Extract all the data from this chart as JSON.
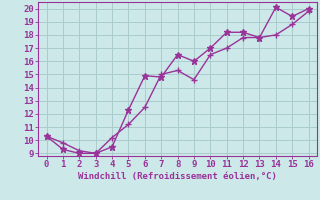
{
  "xlabel": "Windchill (Refroidissement éolien,°C)",
  "background_color": "#cce8e8",
  "grid_color": "#aacccc",
  "line_color": "#993399",
  "xlim": [
    -0.5,
    16.5
  ],
  "ylim": [
    8.8,
    20.5
  ],
  "xticks": [
    0,
    1,
    2,
    3,
    4,
    5,
    6,
    7,
    8,
    9,
    10,
    11,
    12,
    13,
    14,
    15,
    16
  ],
  "yticks": [
    9,
    10,
    11,
    12,
    13,
    14,
    15,
    16,
    17,
    18,
    19,
    20
  ],
  "line1_x": [
    0,
    1,
    2,
    3,
    4,
    5,
    6,
    7,
    8,
    9,
    10,
    11,
    12,
    13,
    14,
    15,
    16
  ],
  "line1_y": [
    10.3,
    9.3,
    9.0,
    9.0,
    9.5,
    12.3,
    14.9,
    14.8,
    16.5,
    16.0,
    17.0,
    18.2,
    18.2,
    17.8,
    20.1,
    19.4,
    20.0
  ],
  "line2_x": [
    0,
    1,
    2,
    3,
    4,
    5,
    6,
    7,
    8,
    9,
    10,
    11,
    12,
    13,
    14,
    15,
    16
  ],
  "line2_y": [
    10.3,
    9.8,
    9.2,
    9.0,
    10.2,
    11.2,
    12.5,
    15.0,
    15.3,
    14.6,
    16.5,
    17.0,
    17.8,
    17.8,
    18.0,
    18.8,
    19.8
  ],
  "tick_fontsize": 6.5,
  "xlabel_fontsize": 6.5,
  "linewidth": 1.0,
  "marker1": "*",
  "marker2": "+",
  "markersize1": 5,
  "markersize2": 5
}
